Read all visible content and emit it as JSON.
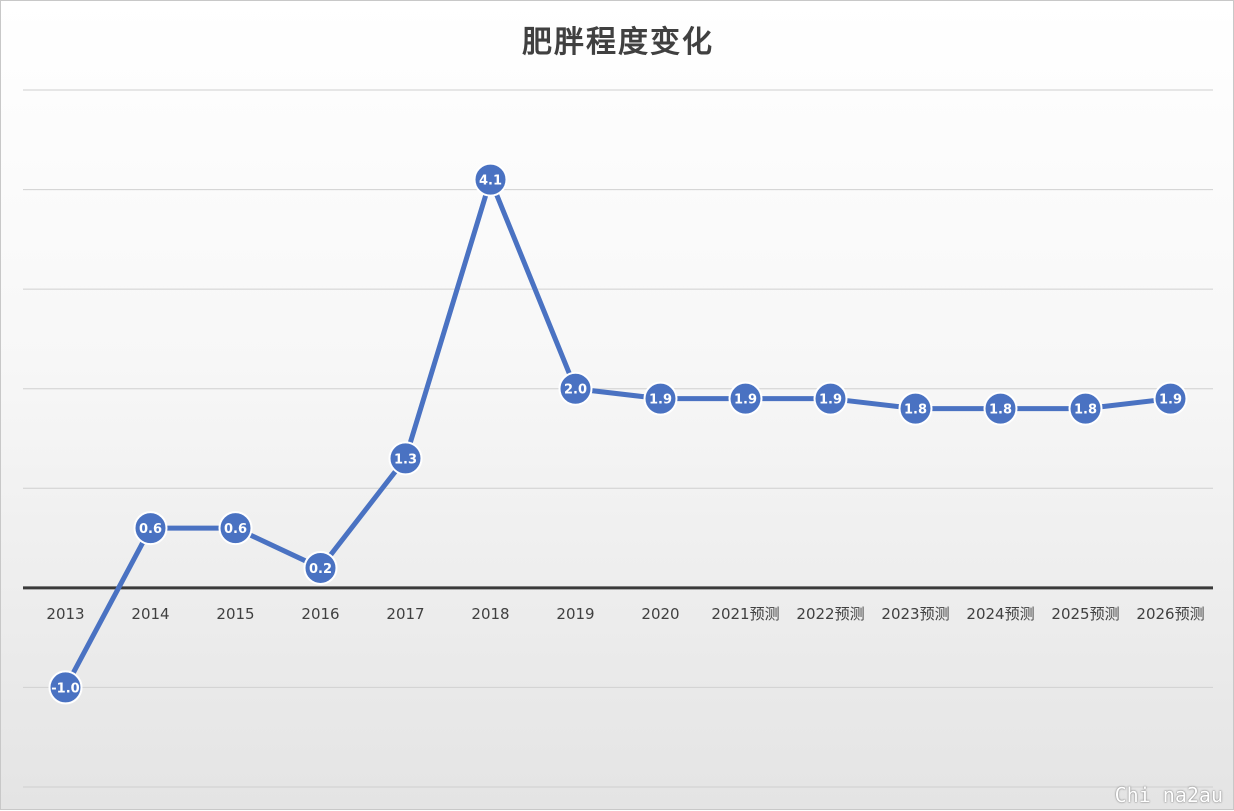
{
  "chart_data": {
    "type": "line",
    "title": "肥胖程度变化",
    "xlabel": "",
    "ylabel": "",
    "categories": [
      "2013",
      "2014",
      "2015",
      "2016",
      "2017",
      "2018",
      "2019",
      "2020",
      "2021预测",
      "2022预测",
      "2023预测",
      "2024预测",
      "2025预测",
      "2026预测"
    ],
    "series": [
      {
        "values": [
          -1.0,
          0.6,
          0.6,
          0.2,
          1.3,
          4.1,
          2.0,
          1.9,
          1.9,
          1.9,
          1.8,
          1.8,
          1.8,
          1.9
        ],
        "labels": [
          "-1.0",
          "0.6",
          "0.6",
          "0.2",
          "1.3",
          "4.1",
          "2.0",
          "1.9",
          "1.9",
          "1.9",
          "1.8",
          "1.8",
          "1.8",
          "1.9"
        ],
        "color": "#4a72c2"
      }
    ],
    "ylim": [
      -2,
      5
    ],
    "y_gridlines": [
      -2,
      -1,
      1,
      2,
      3,
      4,
      5
    ],
    "grid": true,
    "legend": "none",
    "zero_axis_color": "#3a3a3a"
  },
  "watermark": "Chi na2au"
}
